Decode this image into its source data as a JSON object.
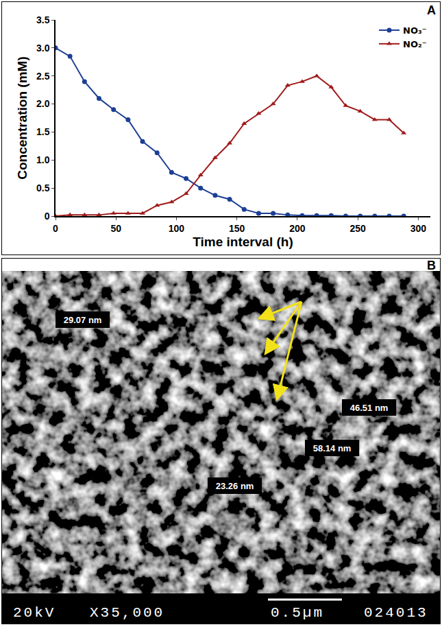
{
  "chart_panel": "A",
  "chart_data": {
    "type": "line",
    "x_label": "Time interval (h)",
    "y_label": "Concentration (mM)",
    "x": [
      0,
      12,
      24,
      36,
      48,
      60,
      72,
      84,
      96,
      108,
      120,
      132,
      144,
      156,
      168,
      180,
      192,
      204,
      216,
      228,
      240,
      252,
      264,
      276,
      288
    ],
    "xlim": [
      0,
      310
    ],
    "xticks": [
      0,
      50,
      100,
      150,
      200,
      250,
      300
    ],
    "ylim": [
      0,
      3.5
    ],
    "yticks": [
      0,
      0.5,
      {
        "value": 1,
        "label": "1.0"
      },
      1.5,
      {
        "value": 2,
        "label": "2.0"
      },
      2.5,
      {
        "value": 3,
        "label": "3.0"
      },
      3.5
    ],
    "grid": false,
    "legend": "top-right",
    "series": [
      {
        "name": "NO₃⁻",
        "color": "#1c3f94",
        "marker": "circle",
        "values": [
          3.0,
          2.85,
          2.4,
          2.1,
          1.9,
          1.72,
          1.33,
          1.13,
          0.78,
          0.67,
          0.5,
          0.37,
          0.3,
          0.12,
          0.05,
          0.05,
          0.02,
          0.01,
          0.01,
          0.01,
          0,
          0,
          0,
          0,
          0
        ]
      },
      {
        "name": "NO₂⁻",
        "color": "#a01c1c",
        "marker": "triangle-up",
        "values": [
          0,
          0.02,
          0.02,
          0.02,
          0.05,
          0.05,
          0.05,
          0.19,
          0.25,
          0.4,
          0.73,
          1.04,
          1.3,
          1.65,
          1.83,
          2.0,
          2.33,
          2.4,
          2.5,
          2.3,
          1.97,
          1.87,
          1.72,
          1.72,
          1.48
        ]
      }
    ]
  },
  "micrograph": {
    "panel": "B",
    "measurements": [
      "29.07 nm",
      "46.51 nm",
      "58.14 nm",
      "23.26 nm"
    ],
    "info_bar": [
      "20kV",
      "X35,000",
      "0.5µm",
      "024013"
    ]
  }
}
